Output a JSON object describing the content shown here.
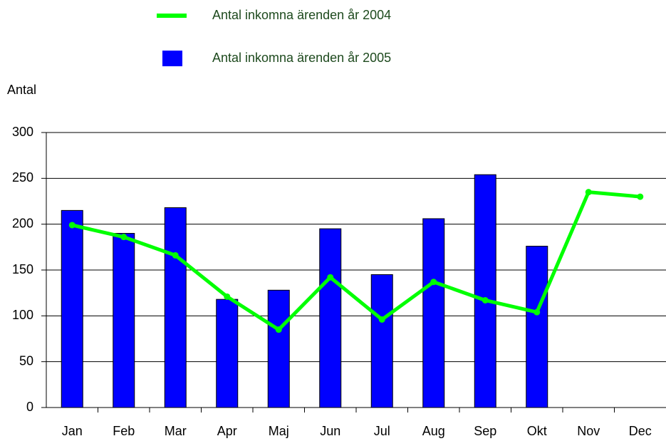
{
  "chart_data": {
    "type": "bar",
    "y_label": "Antal",
    "categories": [
      "Jan",
      "Feb",
      "Mar",
      "Apr",
      "Maj",
      "Jun",
      "Jul",
      "Aug",
      "Sep",
      "Okt",
      "Nov",
      "Dec"
    ],
    "series": [
      {
        "name": "Antal inkomna ärenden år 2004",
        "type": "line",
        "color": "#00ff00",
        "values": [
          199,
          186,
          166,
          121,
          85,
          142,
          96,
          137,
          117,
          104,
          235,
          230
        ]
      },
      {
        "name": "Antal inkomna ärenden år 2005",
        "type": "bar",
        "color": "#0000ff",
        "values": [
          215,
          190,
          218,
          118,
          128,
          195,
          145,
          206,
          254,
          176,
          null,
          null
        ]
      }
    ],
    "ylim": [
      0,
      300
    ],
    "yticks": [
      0,
      50,
      100,
      150,
      200,
      250,
      300
    ],
    "grid": true
  }
}
